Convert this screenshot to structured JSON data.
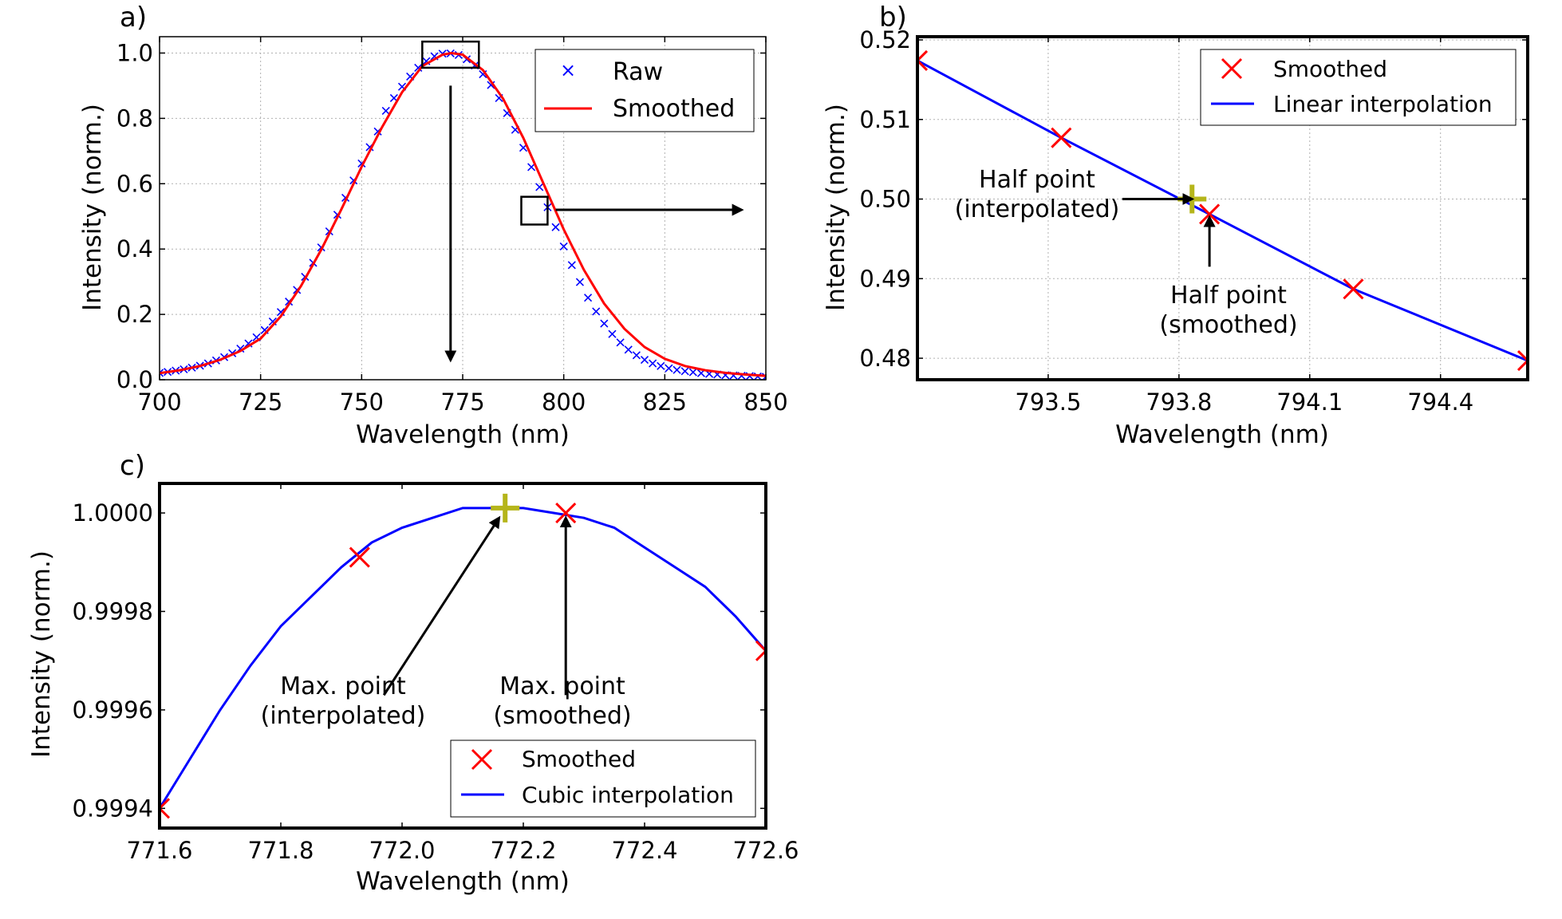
{
  "chart_data": [
    {
      "panel_label": "a)",
      "type": "line",
      "xlabel": "Wavelength (nm)",
      "ylabel": "Intensity (norm.)",
      "xlim": [
        700,
        850
      ],
      "ylim": [
        0,
        1.05
      ],
      "xticks": [
        "700",
        "725",
        "750",
        "775",
        "800",
        "825",
        "850"
      ],
      "yticks": [
        "0.0",
        "0.2",
        "0.4",
        "0.6",
        "0.8",
        "1.0"
      ],
      "grid": true,
      "legend_position": "top-right",
      "series": [
        {
          "name": "Raw",
          "style": "markers",
          "marker": "x",
          "color": "#0000ff",
          "x": [
            700,
            702,
            704,
            706,
            708,
            710,
            712,
            714,
            716,
            718,
            720,
            722,
            724,
            726,
            728,
            730,
            732,
            734,
            736,
            738,
            740,
            742,
            744,
            746,
            748,
            750,
            752,
            754,
            756,
            758,
            760,
            762,
            764,
            766,
            768,
            770,
            772,
            774,
            776,
            778,
            780,
            782,
            784,
            786,
            788,
            790,
            792,
            794,
            796,
            798,
            800,
            802,
            804,
            806,
            808,
            810,
            812,
            814,
            816,
            818,
            820,
            822,
            824,
            826,
            828,
            830,
            832,
            834,
            836,
            838,
            840,
            842,
            844,
            846,
            848,
            850
          ],
          "y": [
            0.021,
            0.024,
            0.028,
            0.032,
            0.037,
            0.043,
            0.05,
            0.059,
            0.069,
            0.081,
            0.095,
            0.111,
            0.13,
            0.152,
            0.178,
            0.207,
            0.239,
            0.275,
            0.315,
            0.358,
            0.405,
            0.454,
            0.505,
            0.557,
            0.61,
            0.662,
            0.712,
            0.76,
            0.823,
            0.862,
            0.897,
            0.928,
            0.955,
            0.975,
            0.99,
            0.998,
            0.999,
            0.994,
            0.981,
            0.962,
            0.935,
            0.902,
            0.862,
            0.816,
            0.765,
            0.71,
            0.651,
            0.59,
            0.528,
            0.467,
            0.408,
            0.351,
            0.299,
            0.251,
            0.209,
            0.172,
            0.14,
            0.114,
            0.092,
            0.075,
            0.061,
            0.05,
            0.042,
            0.035,
            0.03,
            0.026,
            0.023,
            0.02,
            0.018,
            0.016,
            0.014,
            0.013,
            0.012,
            0.011,
            0.01,
            0.009
          ]
        },
        {
          "name": "Smoothed",
          "style": "line",
          "color": "#ff0000",
          "x": [
            700,
            705,
            710,
            715,
            720,
            725,
            730,
            735,
            740,
            745,
            750,
            755,
            760,
            765,
            770,
            772.2,
            775,
            780,
            785,
            790,
            795,
            800,
            805,
            810,
            815,
            820,
            825,
            830,
            835,
            840,
            845,
            850
          ],
          "y": [
            0.02,
            0.029,
            0.042,
            0.061,
            0.088,
            0.126,
            0.194,
            0.287,
            0.398,
            0.522,
            0.652,
            0.772,
            0.88,
            0.96,
            0.995,
            1.0,
            0.995,
            0.948,
            0.86,
            0.74,
            0.6,
            0.46,
            0.336,
            0.233,
            0.156,
            0.1,
            0.064,
            0.042,
            0.029,
            0.021,
            0.016,
            0.012
          ]
        }
      ],
      "annotations": [
        {
          "type": "box",
          "note": "peak region",
          "x": [
            765,
            779
          ],
          "y": [
            0.955,
            1.035
          ]
        },
        {
          "type": "box",
          "note": "half-maximum region",
          "x": [
            789.5,
            796
          ],
          "y": [
            0.475,
            0.56
          ]
        },
        {
          "type": "arrow",
          "direction": "down",
          "from": [
            772,
            0.9
          ],
          "to": [
            772,
            0.06
          ]
        },
        {
          "type": "arrow",
          "direction": "right",
          "from": [
            798,
            0.52
          ],
          "to": [
            844,
            0.52
          ]
        }
      ]
    },
    {
      "panel_label": "b)",
      "type": "line",
      "xlabel": "Wavelength (nm)",
      "ylabel": "Intensity (norm.)",
      "xlim": [
        793.2,
        794.6
      ],
      "ylim": [
        0.4773,
        0.5204
      ],
      "xticks": [
        "793.5",
        "793.8",
        "794.1",
        "794.4"
      ],
      "xtick_values": [
        793.5,
        793.8,
        794.1,
        794.4
      ],
      "yticks": [
        "0.48",
        "0.49",
        "0.50",
        "0.51",
        "0.52"
      ],
      "ytick_values": [
        0.48,
        0.49,
        0.5,
        0.51,
        0.52
      ],
      "grid": true,
      "legend_position": "top-right",
      "series": [
        {
          "name": "Smoothed",
          "style": "markers",
          "marker": "x",
          "color": "#ff0000",
          "x": [
            793.2,
            793.53,
            793.87,
            794.2,
            794.6
          ],
          "y": [
            0.5174,
            0.5077,
            0.4981,
            0.4887,
            0.4797
          ]
        },
        {
          "name": "Linear interpolation",
          "style": "line",
          "color": "#0000ff",
          "x": [
            793.2,
            793.53,
            793.87,
            794.2,
            794.6
          ],
          "y": [
            0.5174,
            0.5077,
            0.4981,
            0.4887,
            0.4797
          ]
        }
      ],
      "points": [
        {
          "marker": "plus",
          "color": "#b5b51a",
          "x": 793.83,
          "y": 0.5
        }
      ],
      "annotations": [
        {
          "text_lines": [
            "Half point",
            "(interpolated)"
          ],
          "arrow_from": [
            793.67,
            0.5
          ],
          "arrow_to": [
            793.83,
            0.5
          ]
        },
        {
          "text_lines": [
            "Half point",
            "(smoothed)"
          ],
          "arrow_from": [
            793.87,
            0.4915
          ],
          "arrow_to": [
            793.87,
            0.4977
          ]
        }
      ]
    },
    {
      "panel_label": "c)",
      "type": "line",
      "xlabel": "Wavelength (nm)",
      "ylabel": "Intensity (norm.)",
      "xlim": [
        771.6,
        772.6
      ],
      "ylim": [
        0.99936,
        1.00006
      ],
      "xticks": [
        "771.6",
        "771.8",
        "772.0",
        "772.2",
        "772.4",
        "772.6"
      ],
      "xtick_values": [
        771.6,
        771.8,
        772.0,
        772.2,
        772.4,
        772.6
      ],
      "yticks": [
        "0.9994",
        "0.9996",
        "0.9998",
        "1.0000"
      ],
      "ytick_values": [
        0.9994,
        0.9996,
        0.9998,
        1.0
      ],
      "grid": false,
      "legend_position": "bottom-right",
      "series": [
        {
          "name": "Smoothed",
          "style": "markers",
          "marker": "x",
          "color": "#ff0000",
          "x": [
            771.6,
            771.93,
            772.27,
            772.6
          ],
          "y": [
            0.9994,
            0.99991,
            1.0,
            0.99972
          ]
        },
        {
          "name": "Cubic interpolation",
          "style": "line",
          "color": "#0000ff",
          "x": [
            771.6,
            771.65,
            771.7,
            771.75,
            771.8,
            771.85,
            771.9,
            771.95,
            772.0,
            772.05,
            772.1,
            772.15,
            772.2,
            772.25,
            772.3,
            772.35,
            772.4,
            772.45,
            772.5,
            772.55,
            772.6
          ],
          "y": [
            0.9994,
            0.9995,
            0.9996,
            0.99969,
            0.99977,
            0.99983,
            0.99989,
            0.99994,
            0.99997,
            0.99999,
            1.00001,
            1.00001,
            1.00001,
            1.0,
            0.99999,
            0.99997,
            0.99993,
            0.99989,
            0.99985,
            0.99979,
            0.99972
          ]
        }
      ],
      "points": [
        {
          "marker": "plus",
          "color": "#b5b51a",
          "x": 772.17,
          "y": 1.00001
        }
      ],
      "annotations": [
        {
          "text_lines": [
            "Max. point",
            "(interpolated)"
          ],
          "arrow_from": [
            771.97,
            0.99963
          ],
          "arrow_to": [
            772.16,
            0.99999
          ]
        },
        {
          "text_lines": [
            "Max. point",
            "(smoothed)"
          ],
          "arrow_from": [
            772.27,
            0.99963
          ],
          "arrow_to": [
            772.27,
            0.99999
          ]
        }
      ]
    }
  ]
}
